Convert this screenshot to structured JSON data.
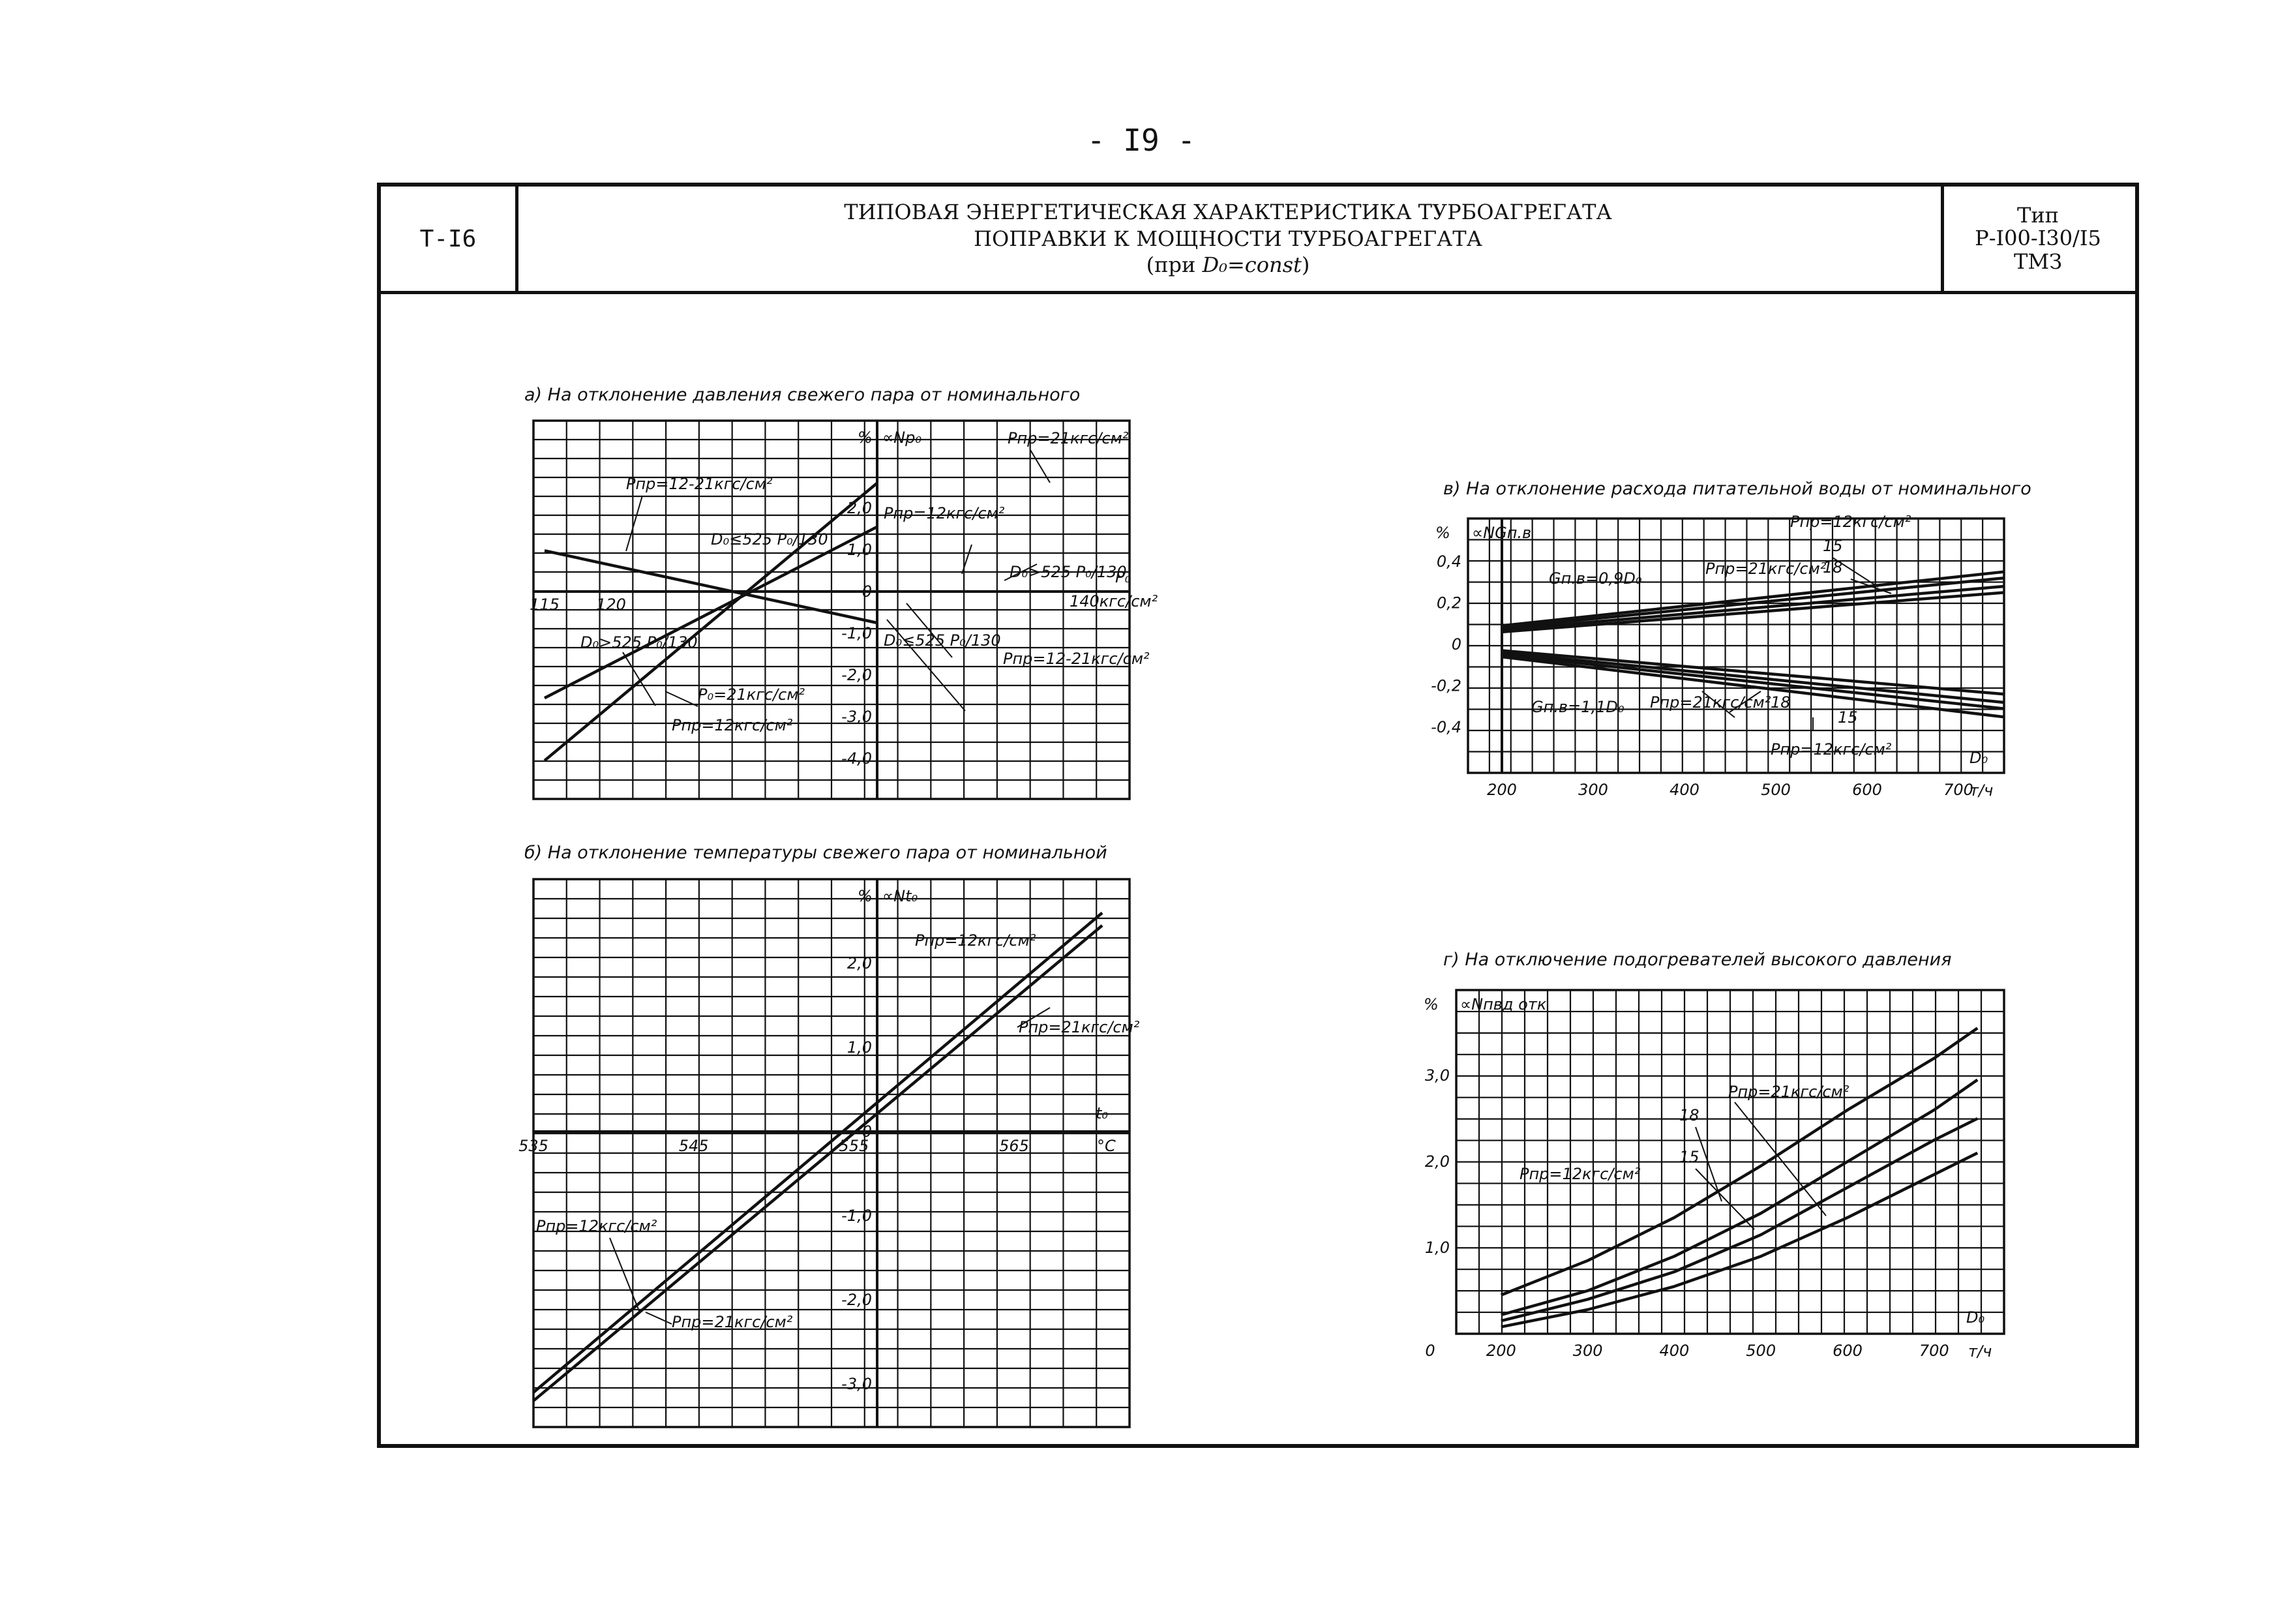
{
  "page_number": "- I9 -",
  "header": {
    "code": "Т-I6",
    "title_line1": "ТИПОВАЯ ЭНЕРГЕТИЧЕСКАЯ ХАРАКТЕРИСТИКА ТУРБОАГРЕГАТА",
    "title_line2": "ПОПРАВКИ К МОЩНОСТИ ТУРБОАГРЕГАТА",
    "title_line3_prefix": "(при ",
    "title_line3_var": "D₀=const",
    "title_line3_suffix": ")",
    "type_label": "Тип",
    "type_model": "Р-I00-I30/I5",
    "type_maker": "ТМЗ"
  },
  "colors": {
    "ink": "#111111",
    "paper": "#ffffff"
  },
  "chart_data": [
    {
      "id": "a",
      "type": "line",
      "title": "а) На отклонение давления свежего пара от номинального",
      "ylabel": "%",
      "yvar": "∝Np₀",
      "xlabel": "P₀",
      "xunit": "140кгс/см²",
      "xlim": [
        115,
        140
      ],
      "ylim": [
        -4.5,
        4.0
      ],
      "xtick_labels": [
        {
          "x": 115,
          "label": "115"
        },
        {
          "x": 120,
          "label": "120"
        }
      ],
      "ytick_labels": [
        {
          "y": 2.0,
          "label": "2,0"
        },
        {
          "y": 1.0,
          "label": "1,0"
        },
        {
          "y": 0,
          "label": "0"
        },
        {
          "y": -1.0,
          "label": "-1,0"
        },
        {
          "y": -2.0,
          "label": "-2,0"
        },
        {
          "y": -3.0,
          "label": "-3,0"
        },
        {
          "y": -4.0,
          "label": "-4,0"
        }
      ],
      "series": [
        {
          "x": [
            115,
            140
          ],
          "y": [
            0.98,
            -0.75
          ]
        },
        {
          "x": [
            115,
            140
          ],
          "y": [
            -2.55,
            1.55
          ]
        },
        {
          "x": [
            115,
            140
          ],
          "y": [
            -4.05,
            2.6
          ]
        }
      ],
      "annotations": [
        "Pпр=21кгс/см²",
        "Pпр=12-21кгс/см²",
        "Pпр=12кгс/см²",
        "D₀≤525 P₀/130",
        "D₀>525 P₀/130",
        "D₀>525 P₀/130",
        "D₀≤525 P₀/130",
        "Pпр=12-21кгс/см²",
        "P₀=21кгс/см²",
        "Pпр=12кгс/см²"
      ]
    },
    {
      "id": "b",
      "type": "line",
      "title": "б) На отклонение температуры свежего пара от номинальной",
      "ylabel": "%",
      "yvar": "∝Nt₀",
      "xlabel": "t₀",
      "xunit": "°С",
      "xlim": [
        535,
        565
      ],
      "ylim": [
        -3.5,
        3.0
      ],
      "xtick_labels": [
        {
          "x": 535,
          "label": "535"
        },
        {
          "x": 545,
          "label": "545"
        },
        {
          "x": 555,
          "label": "555"
        },
        {
          "x": 565,
          "label": "565"
        }
      ],
      "ytick_labels": [
        {
          "y": 2.0,
          "label": "2,0"
        },
        {
          "y": 1.0,
          "label": "1,0"
        },
        {
          "y": 0,
          "label": "0"
        },
        {
          "y": -1.0,
          "label": "-1,0"
        },
        {
          "y": -2.0,
          "label": "-2,0"
        },
        {
          "y": -3.0,
          "label": "-3,0"
        }
      ],
      "series": [
        {
          "x": [
            535,
            570.5
          ],
          "y": [
            -3.1,
            2.6
          ]
        },
        {
          "x": [
            535,
            570.5
          ],
          "y": [
            -3.2,
            2.45
          ]
        }
      ],
      "annotations": [
        "Pпр=12кгс/см²",
        "Pпр=21кгс/см²",
        "Pпр=12кгс/см²",
        "Pпр=21кгс/см²"
      ]
    },
    {
      "id": "v",
      "type": "line",
      "title": "в) На отклонение расхода питательной воды от номинального",
      "ylabel": "%",
      "yvar": "∝NGп.в",
      "xlabel": "D₀",
      "xunit": "т/ч",
      "xlim": [
        200,
        750
      ],
      "ylim": [
        -0.5,
        0.5
      ],
      "xtick_labels": [
        {
          "x": 200,
          "label": "200"
        },
        {
          "x": 300,
          "label": "300"
        },
        {
          "x": 400,
          "label": "400"
        },
        {
          "x": 500,
          "label": "500"
        },
        {
          "x": 600,
          "label": "600"
        },
        {
          "x": 700,
          "label": "700"
        }
      ],
      "ytick_labels": [
        {
          "y": 0.4,
          "label": "0,4"
        },
        {
          "y": 0.2,
          "label": "0,2"
        },
        {
          "y": 0,
          "label": "0"
        },
        {
          "y": -0.2,
          "label": "-0,2"
        },
        {
          "y": -0.4,
          "label": "-0,4"
        }
      ],
      "series": [
        {
          "x": [
            200,
            750
          ],
          "y": [
            0.09,
            0.35
          ]
        },
        {
          "x": [
            200,
            750
          ],
          "y": [
            0.08,
            0.32
          ]
        },
        {
          "x": [
            200,
            750
          ],
          "y": [
            0.07,
            0.28
          ]
        },
        {
          "x": [
            200,
            750
          ],
          "y": [
            0.06,
            0.25
          ]
        },
        {
          "x": [
            200,
            750
          ],
          "y": [
            -0.03,
            -0.24
          ]
        },
        {
          "x": [
            200,
            750
          ],
          "y": [
            -0.04,
            -0.28
          ]
        },
        {
          "x": [
            200,
            750
          ],
          "y": [
            -0.05,
            -0.31
          ]
        },
        {
          "x": [
            200,
            750
          ],
          "y": [
            -0.06,
            -0.35
          ]
        }
      ],
      "annotations": [
        "Gп.в=0,9D₀",
        "Pпр=12кгс/см²",
        "15",
        "18",
        "Pпр=21кгс/см²",
        "Gп.в=1,1D₀",
        "Pпр=21кгс/см²",
        "18",
        "15",
        "Pпр=12кгс/см²"
      ]
    },
    {
      "id": "g",
      "type": "line",
      "title": "г) На отключение подогревателей высокого давления",
      "ylabel": "%",
      "yvar": "∝Nпвд отк",
      "xlabel": "D₀",
      "xunit": "т/ч",
      "xlim": [
        170,
        780
      ],
      "ylim": [
        0,
        4.0
      ],
      "xtick_labels": [
        {
          "x": 200,
          "label": "200"
        },
        {
          "x": 300,
          "label": "300"
        },
        {
          "x": 400,
          "label": "400"
        },
        {
          "x": 500,
          "label": "500"
        },
        {
          "x": 600,
          "label": "600"
        },
        {
          "x": 700,
          "label": "700"
        }
      ],
      "origin_label": "0",
      "ytick_labels": [
        {
          "y": 3.0,
          "label": "3,0"
        },
        {
          "y": 2.0,
          "label": "2,0"
        },
        {
          "y": 1.0,
          "label": "1,0"
        }
      ],
      "series": [
        {
          "x": [
            200,
            300,
            400,
            500,
            600,
            700,
            750
          ],
          "y": [
            0.45,
            0.85,
            1.35,
            1.95,
            2.6,
            3.2,
            3.55
          ]
        },
        {
          "x": [
            200,
            300,
            400,
            500,
            600,
            700,
            750
          ],
          "y": [
            0.22,
            0.5,
            0.9,
            1.4,
            2.0,
            2.6,
            2.95
          ]
        },
        {
          "x": [
            200,
            300,
            400,
            500,
            600,
            700,
            750
          ],
          "y": [
            0.15,
            0.4,
            0.72,
            1.15,
            1.7,
            2.25,
            2.5
          ]
        },
        {
          "x": [
            200,
            300,
            400,
            500,
            600,
            700,
            750
          ],
          "y": [
            0.08,
            0.28,
            0.55,
            0.9,
            1.35,
            1.85,
            2.1
          ]
        }
      ],
      "annotations": [
        "Pпр=21кгс/см²",
        "18",
        "15",
        "Pпр=12кгс/см²"
      ]
    }
  ]
}
